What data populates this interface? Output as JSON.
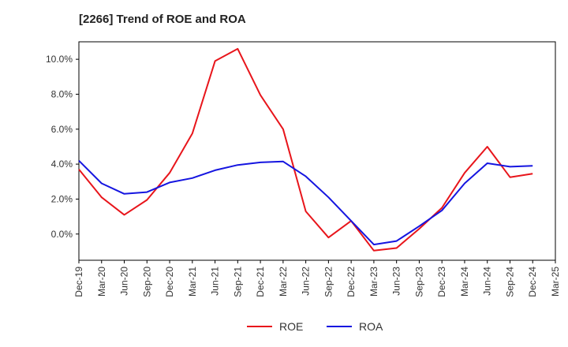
{
  "chart_data": {
    "type": "line",
    "title": "[2266]  Trend of ROE and ROA",
    "xlabel": "",
    "ylabel": "",
    "x": [
      "Dec-19",
      "Mar-20",
      "Jun-20",
      "Sep-20",
      "Dec-20",
      "Mar-21",
      "Jun-21",
      "Sep-21",
      "Dec-21",
      "Mar-22",
      "Jun-22",
      "Sep-22",
      "Dec-22",
      "Mar-23",
      "Jun-23",
      "Sep-23",
      "Dec-23",
      "Mar-24",
      "Jun-24",
      "Sep-24",
      "Dec-24",
      "Mar-25"
    ],
    "ylim": [
      -1.5,
      11.0
    ],
    "yticks": [
      0,
      2,
      4,
      6,
      8,
      10
    ],
    "ytick_labels": [
      "0.0%",
      "2.0%",
      "4.0%",
      "6.0%",
      "8.0%",
      "10.0%"
    ],
    "grid": true,
    "legend_position": "bottom",
    "series": [
      {
        "name": "ROE",
        "color": "#e8151b",
        "values": [
          3.7,
          2.1,
          1.1,
          1.95,
          3.5,
          5.75,
          9.9,
          10.6,
          7.95,
          6.0,
          1.3,
          -0.2,
          0.75,
          -0.95,
          -0.8,
          0.3,
          1.5,
          3.5,
          5.0,
          3.25,
          3.45,
          null
        ]
      },
      {
        "name": "ROA",
        "color": "#1515e0",
        "values": [
          4.2,
          2.9,
          2.3,
          2.4,
          2.95,
          3.2,
          3.65,
          3.95,
          4.1,
          4.15,
          3.3,
          2.1,
          0.75,
          -0.6,
          -0.4,
          0.45,
          1.35,
          2.9,
          4.05,
          3.85,
          3.9,
          null
        ]
      }
    ]
  }
}
